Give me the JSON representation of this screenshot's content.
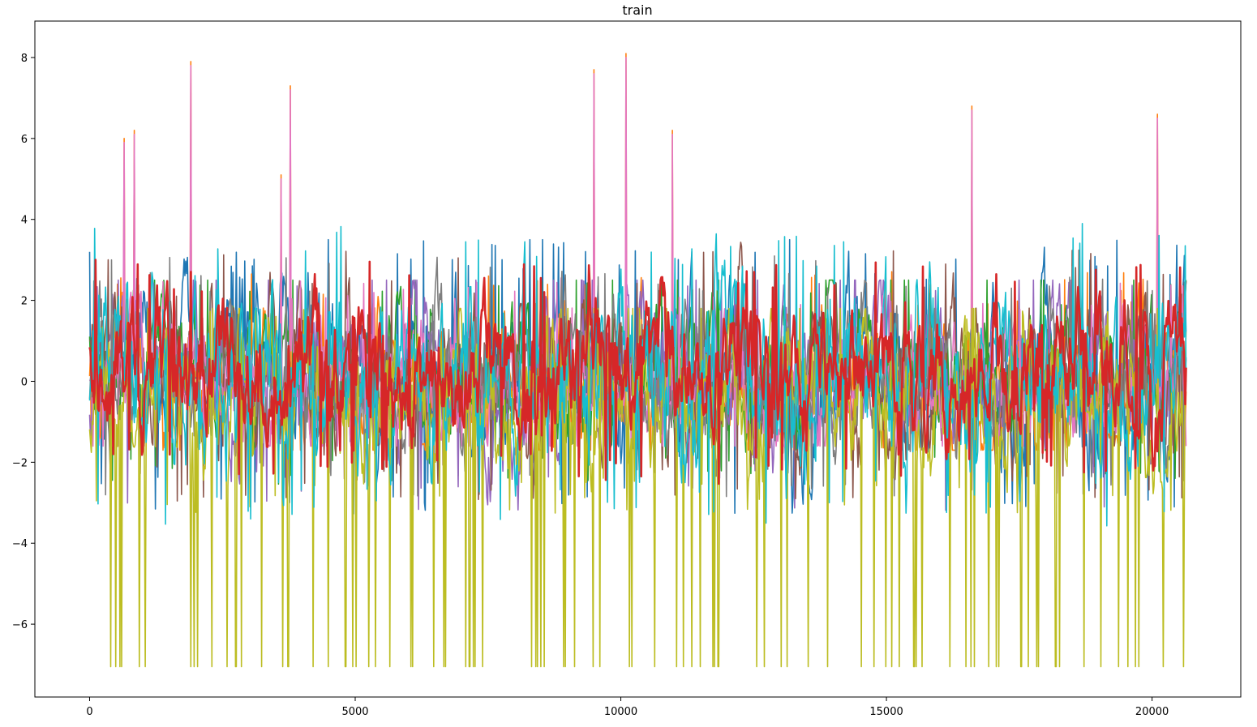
{
  "chart_data": {
    "type": "line",
    "title": "train",
    "xlabel": "",
    "ylabel": "",
    "xlim": [
      -1030,
      21670
    ],
    "ylim": [
      -7.8,
      8.9
    ],
    "x_range": [
      0,
      20640
    ],
    "x_ticks": [
      0,
      5000,
      10000,
      15000,
      20000
    ],
    "x_tick_labels": [
      "0",
      "5000",
      "10000",
      "15000",
      "20000"
    ],
    "y_ticks": [
      -6,
      -4,
      -2,
      0,
      2,
      4,
      6,
      8
    ],
    "y_tick_labels": [
      "−6",
      "−4",
      "−2",
      "0",
      "2",
      "4",
      "6",
      "8"
    ],
    "grid": false,
    "legend": "none",
    "series": [
      {
        "color": "#1f77b4",
        "values_summary": {
          "min": -3.9,
          "max": 3.5,
          "typical_range": [
            -2.0,
            2.3
          ]
        }
      },
      {
        "color": "#ff7f0e",
        "values_summary": {
          "min": -1.7,
          "max": 8.1,
          "typical_range": [
            -1.7,
            1.7
          ]
        }
      },
      {
        "color": "#2ca02c",
        "values_summary": {
          "min": -3.7,
          "max": 2.5,
          "typical_range": [
            -1.5,
            2.0
          ]
        }
      },
      {
        "color": "#d62728",
        "values_summary": {
          "min": -3.5,
          "max": 3.0,
          "typical_range": [
            -1.5,
            2.0
          ]
        }
      },
      {
        "color": "#9467bd",
        "values_summary": {
          "min": -3.7,
          "max": 2.5,
          "typical_range": [
            -2.0,
            2.0
          ]
        }
      },
      {
        "color": "#8c564b",
        "values_summary": {
          "min": -3.0,
          "max": 4.1,
          "typical_range": [
            -1.8,
            2.2
          ]
        }
      },
      {
        "color": "#e377c2",
        "values_summary": {
          "min": -1.6,
          "max": 7.9,
          "typical_range": [
            -1.6,
            1.6
          ]
        }
      },
      {
        "color": "#7f7f7f",
        "values_summary": {
          "min": -3.0,
          "max": 3.3,
          "typical_range": [
            -1.8,
            2.0
          ]
        }
      },
      {
        "color": "#bcbd22",
        "values_summary": {
          "min": -7.05,
          "max": 1.8,
          "typical_range": [
            -2.2,
            1.5
          ]
        }
      },
      {
        "color": "#17becf",
        "values_summary": {
          "min": -4.0,
          "max": 4.4,
          "typical_range": [
            -2.2,
            2.5
          ]
        }
      }
    ],
    "spikes_pink_orange_x": [
      650,
      840,
      1900,
      3600,
      3780,
      9500,
      10100,
      10970,
      16600,
      20100
    ],
    "spikes_pink_orange_y": [
      6.0,
      6.2,
      7.9,
      5.1,
      7.3,
      7.7,
      8.1,
      6.2,
      6.8,
      6.6
    ],
    "olive_drop_value": -7.05
  }
}
